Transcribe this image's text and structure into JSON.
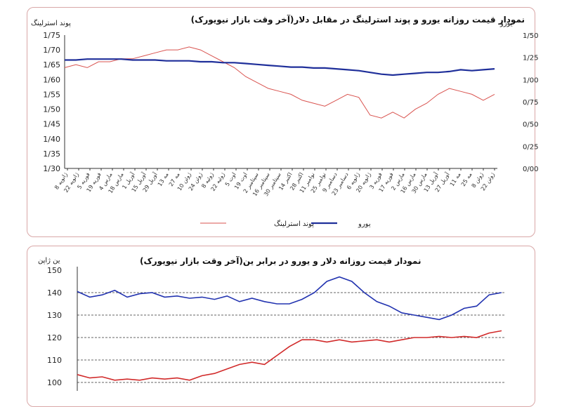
{
  "colors": {
    "euro": "#1f2f9a",
    "pound": "#d9534f",
    "euro_bottom": "#2233b0",
    "dollar_yen_bottom": "#d12a2a",
    "border": "#d9a7a7"
  },
  "top_chart_title": "نمودار قیمت روزانه  یورو و پوند استرلینگ در مقابل دلار(آخر وقت بازار نیویورک)",
  "bottom_chart_title": "نمودار قیمت روزانه دلار و یورو در برابر ین(آخر وقت بازار نیویورک)",
  "chart_data": [
    {
      "type": "line",
      "title": "نمودار قیمت روزانه  یورو و پوند استرلینگ در مقابل دلار(آخر وقت بازار نیویورک)",
      "ylabel_left": "پوند استرلینگ",
      "ylabel_right": "یورو",
      "left_ticks": [
        "1/75",
        "1/70",
        "1/65",
        "1/60",
        "1/55",
        "1/50",
        "1/45",
        "1/40",
        "1/35",
        "1/30"
      ],
      "right_ticks": [
        "1/50",
        "1/25",
        "1/00",
        "0/75",
        "0/50",
        "0/25",
        "0/00"
      ],
      "left_ylim": [
        1.3,
        1.75
      ],
      "right_ylim": [
        0.0,
        1.5
      ],
      "x_tick_labels": [
        "8 ژانویه",
        "22 ژانویه",
        "5 فوریه",
        "19 فوریه",
        "4 مارس",
        "18 مارس",
        "1 آوریل",
        "15 آوریل",
        "29 آوریل",
        "13 مه",
        "27 مه",
        "10 ژوئن",
        "24 ژوئن",
        "8 ژوئیه",
        "22 ژوئیه",
        "5 اوت",
        "19 اوت",
        "2 سپتامبر",
        "16 سپتامبر",
        "30 سپتامبر",
        "14 اکتبر",
        "28 اکتبر",
        "11 نوامبر",
        "25 نوامبر",
        "9 دسامبر",
        "23 دسامبر",
        "6 ژانویه",
        "20 ژانویه",
        "3 فوریه",
        "17 فوریه",
        "2 مارس",
        "16 مارس",
        "30 مارس",
        "13 آوریل",
        "27 آوریل",
        "11 مه",
        "25 مه",
        "8 ژوئن",
        "22 ژوئن"
      ],
      "legend": [
        "پوند استرلینگ",
        "یورو"
      ],
      "series": [
        {
          "name": "یورو",
          "axis": "right",
          "values": [
            1.22,
            1.22,
            1.23,
            1.23,
            1.23,
            1.23,
            1.22,
            1.22,
            1.22,
            1.21,
            1.21,
            1.21,
            1.2,
            1.2,
            1.19,
            1.19,
            1.18,
            1.17,
            1.16,
            1.15,
            1.14,
            1.14,
            1.13,
            1.13,
            1.12,
            1.11,
            1.1,
            1.08,
            1.06,
            1.05,
            1.06,
            1.07,
            1.08,
            1.08,
            1.09,
            1.11,
            1.1,
            1.11,
            1.12
          ]
        },
        {
          "name": "پوند استرلینگ",
          "axis": "left",
          "values": [
            1.64,
            1.65,
            1.64,
            1.66,
            1.66,
            1.67,
            1.67,
            1.68,
            1.69,
            1.7,
            1.7,
            1.71,
            1.7,
            1.68,
            1.66,
            1.64,
            1.61,
            1.59,
            1.57,
            1.56,
            1.55,
            1.53,
            1.52,
            1.51,
            1.53,
            1.55,
            1.54,
            1.48,
            1.47,
            1.49,
            1.47,
            1.5,
            1.52,
            1.55,
            1.57,
            1.56,
            1.55,
            1.53,
            1.55
          ]
        }
      ]
    },
    {
      "type": "line",
      "title": "نمودار قیمت روزانه دلار و یورو در برابر ین(آخر وقت بازار نیویورک)",
      "ylabel": "ین ژاپن",
      "ticks": [
        "150",
        "140",
        "130",
        "120",
        "110",
        "100"
      ],
      "ylim": [
        100,
        150
      ],
      "series": [
        {
          "name": "یورو",
          "values": [
            140.5,
            138,
            139,
            141,
            138,
            139.5,
            140,
            138,
            138.5,
            137.5,
            138,
            137,
            138.5,
            136,
            137.5,
            136,
            135,
            135,
            137,
            140,
            145,
            147,
            145,
            140,
            136,
            134,
            131,
            130,
            129,
            128,
            130,
            133,
            134,
            139,
            140
          ]
        },
        {
          "name": "دلار",
          "values": [
            103.5,
            102,
            102.5,
            101,
            101.5,
            101,
            102,
            101.5,
            102,
            101,
            103,
            104,
            106,
            108,
            109,
            108,
            112,
            116,
            119,
            119,
            118,
            119,
            118,
            118.5,
            119,
            118,
            119,
            120,
            120,
            120.5,
            120,
            120.5,
            120,
            122,
            123
          ]
        }
      ]
    }
  ]
}
